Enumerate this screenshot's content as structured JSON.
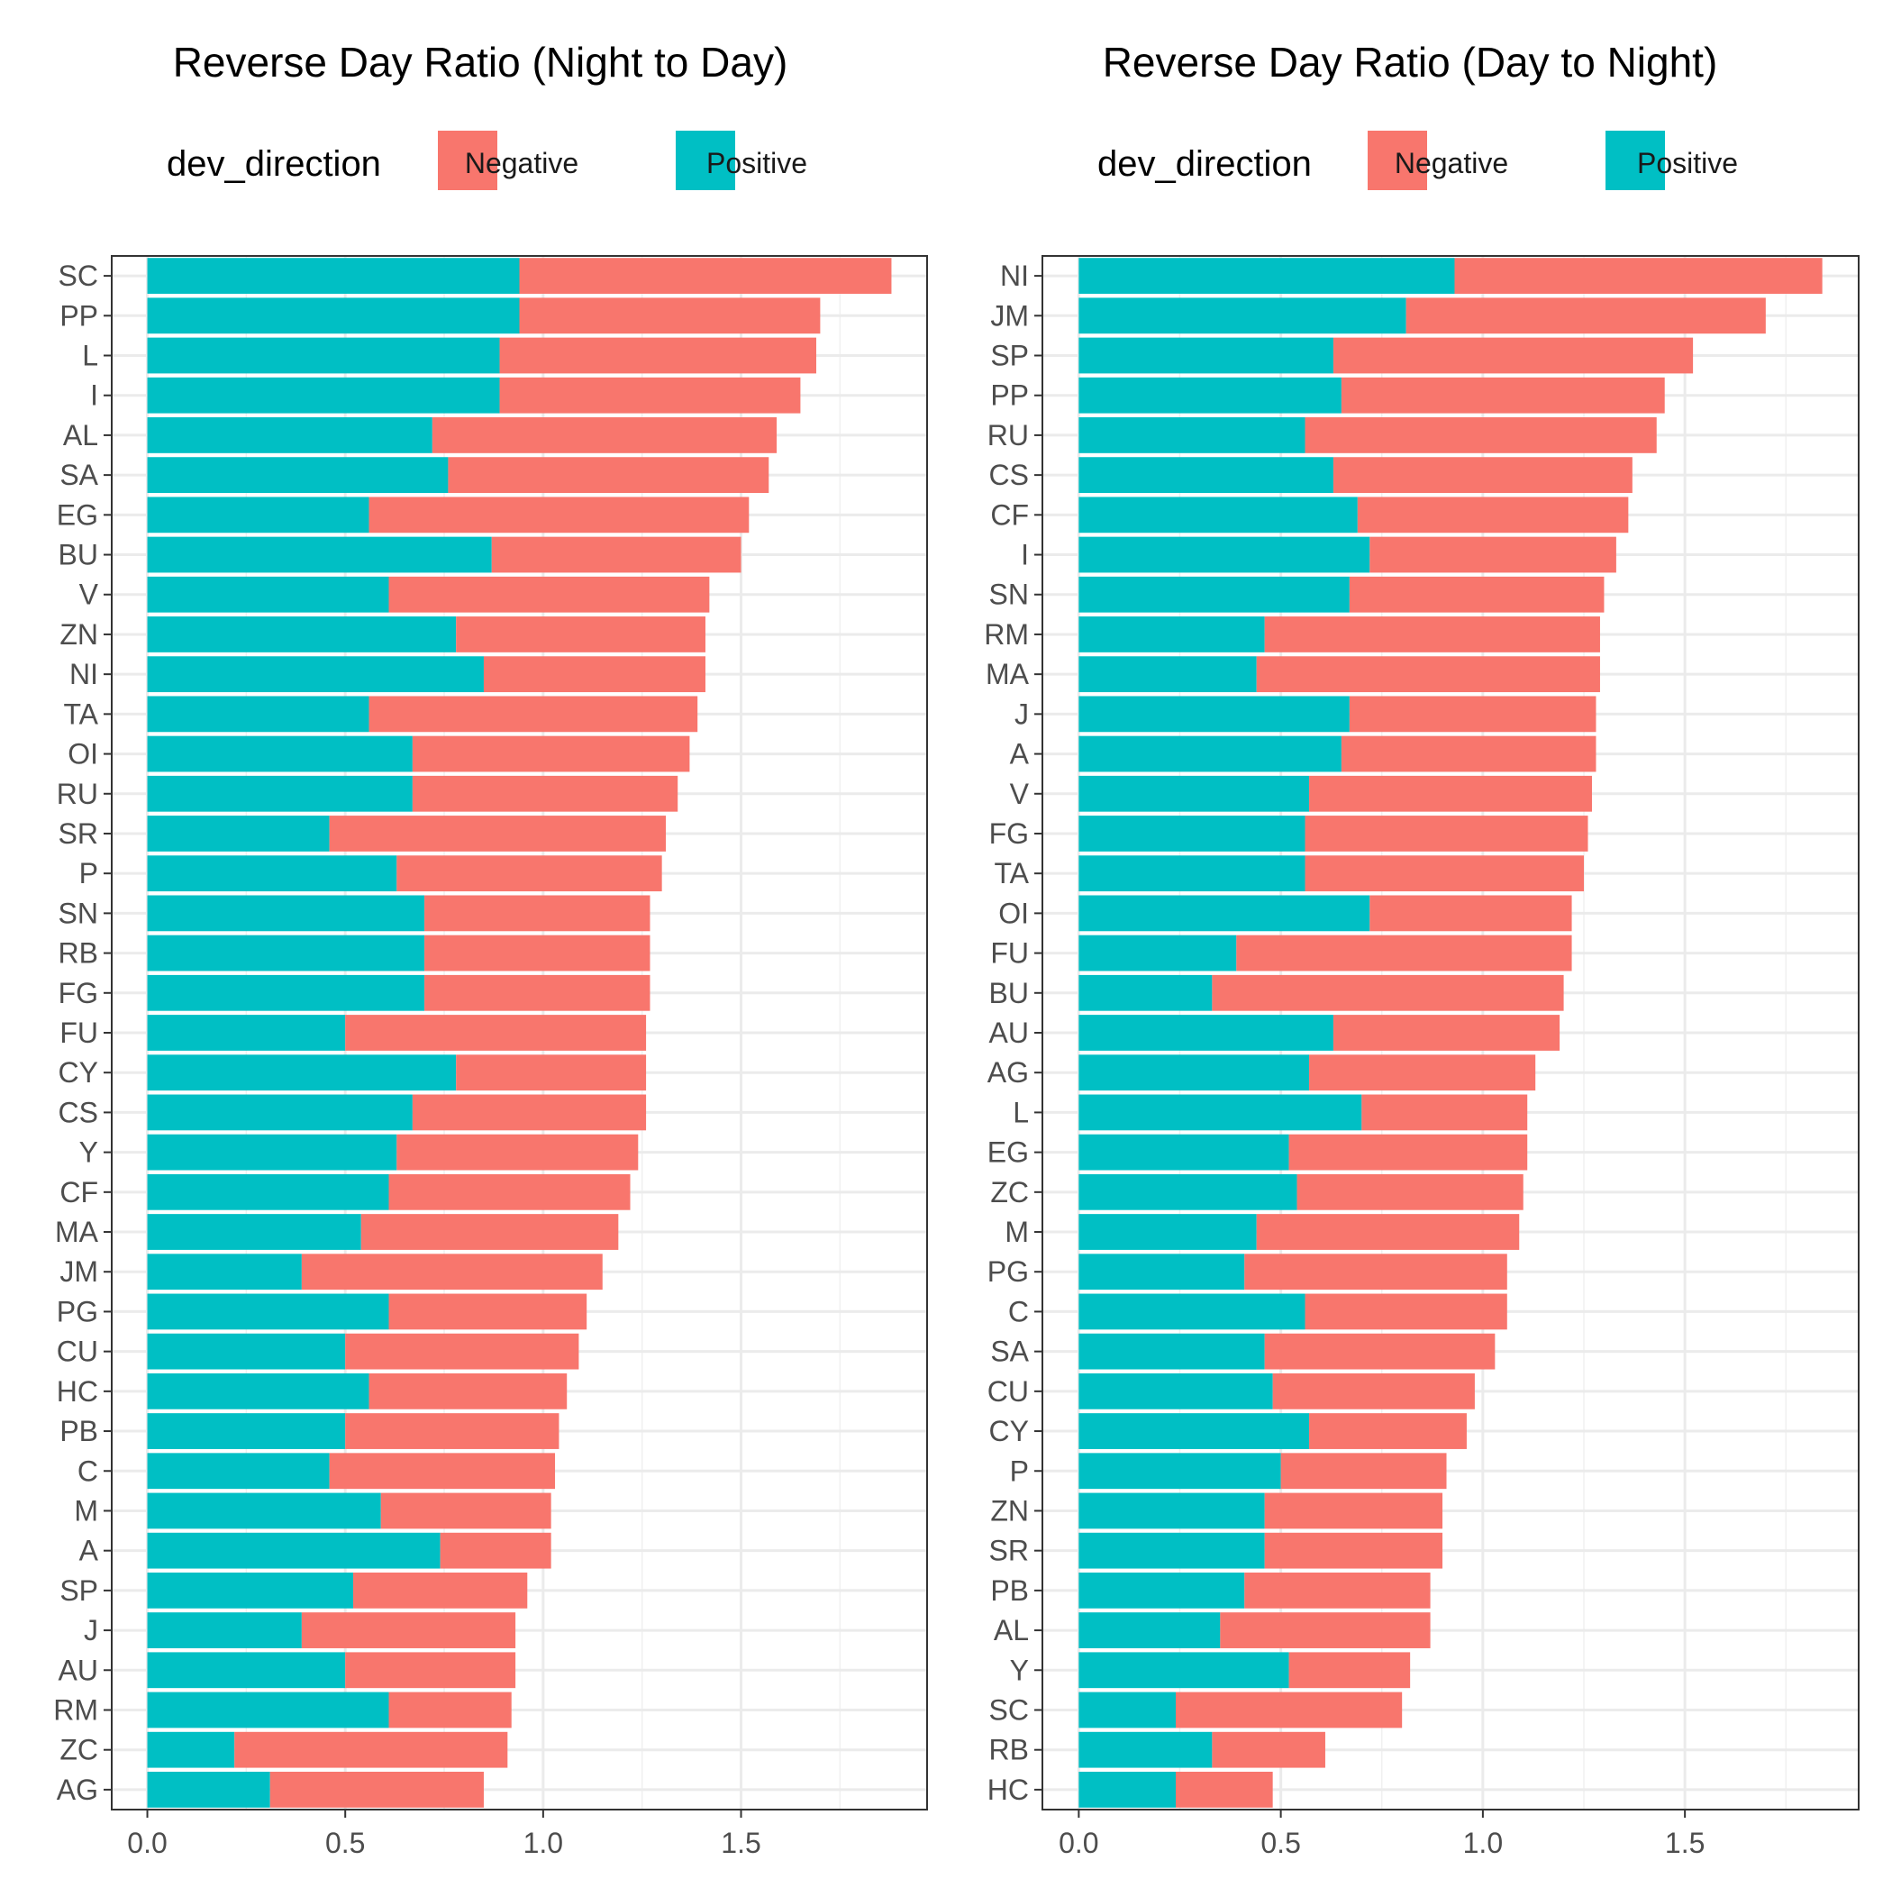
{
  "chart_data": [
    {
      "type": "bar",
      "orientation": "horizontal",
      "stacked": true,
      "title": "Reverse Day Ratio (Night to Day)",
      "legend": {
        "title": "dev_direction",
        "position": "top",
        "entries": [
          {
            "name": "Negative",
            "color": "#F8766D"
          },
          {
            "name": "Positive",
            "color": "#00BFC4"
          }
        ]
      },
      "xlabel": "",
      "ylabel": "",
      "xlim": [
        -0.09,
        1.97
      ],
      "xticks": [
        0.0,
        0.5,
        1.0,
        1.5
      ],
      "xtick_labels": [
        "0.0",
        "0.5",
        "1.0",
        "1.5"
      ],
      "grid": true,
      "categories": [
        "SC",
        "PP",
        "L",
        "I",
        "AL",
        "SA",
        "EG",
        "BU",
        "V",
        "ZN",
        "NI",
        "TA",
        "OI",
        "RU",
        "SR",
        "P",
        "SN",
        "RB",
        "FG",
        "FU",
        "CY",
        "CS",
        "Y",
        "CF",
        "MA",
        "JM",
        "PG",
        "CU",
        "HC",
        "PB",
        "C",
        "M",
        "A",
        "SP",
        "J",
        "AU",
        "RM",
        "ZC",
        "AG"
      ],
      "series": [
        {
          "name": "Positive",
          "values": [
            0.94,
            0.94,
            0.89,
            0.89,
            0.72,
            0.76,
            0.56,
            0.87,
            0.61,
            0.78,
            0.85,
            0.56,
            0.67,
            0.67,
            0.46,
            0.63,
            0.7,
            0.7,
            0.7,
            0.5,
            0.78,
            0.67,
            0.63,
            0.61,
            0.54,
            0.39,
            0.61,
            0.5,
            0.56,
            0.5,
            0.46,
            0.59,
            0.74,
            0.52,
            0.39,
            0.5,
            0.61,
            0.22,
            0.31
          ]
        },
        {
          "name": "Negative",
          "values": [
            0.94,
            0.76,
            0.8,
            0.76,
            0.87,
            0.81,
            0.96,
            0.63,
            0.81,
            0.63,
            0.56,
            0.83,
            0.7,
            0.67,
            0.85,
            0.67,
            0.57,
            0.57,
            0.57,
            0.76,
            0.48,
            0.59,
            0.61,
            0.61,
            0.65,
            0.76,
            0.5,
            0.59,
            0.5,
            0.54,
            0.57,
            0.43,
            0.28,
            0.44,
            0.54,
            0.43,
            0.31,
            0.69,
            0.54
          ]
        }
      ]
    },
    {
      "type": "bar",
      "orientation": "horizontal",
      "stacked": true,
      "title": "Reverse Day Ratio (Day to Night)",
      "legend": {
        "title": "dev_direction",
        "position": "top",
        "entries": [
          {
            "name": "Negative",
            "color": "#F8766D"
          },
          {
            "name": "Positive",
            "color": "#00BFC4"
          }
        ]
      },
      "xlabel": "",
      "ylabel": "",
      "xlim": [
        -0.09,
        1.93
      ],
      "xticks": [
        0.0,
        0.5,
        1.0,
        1.5
      ],
      "xtick_labels": [
        "0.0",
        "0.5",
        "1.0",
        "1.5"
      ],
      "grid": true,
      "categories": [
        "NI",
        "JM",
        "SP",
        "PP",
        "RU",
        "CS",
        "CF",
        "I",
        "SN",
        "RM",
        "MA",
        "J",
        "A",
        "V",
        "FG",
        "TA",
        "OI",
        "FU",
        "BU",
        "AU",
        "AG",
        "L",
        "EG",
        "ZC",
        "M",
        "PG",
        "C",
        "SA",
        "CU",
        "CY",
        "P",
        "ZN",
        "SR",
        "PB",
        "AL",
        "Y",
        "SC",
        "RB",
        "HC"
      ],
      "series": [
        {
          "name": "Positive",
          "values": [
            0.93,
            0.81,
            0.63,
            0.65,
            0.56,
            0.63,
            0.69,
            0.72,
            0.67,
            0.46,
            0.44,
            0.67,
            0.65,
            0.57,
            0.56,
            0.56,
            0.72,
            0.39,
            0.33,
            0.63,
            0.57,
            0.7,
            0.52,
            0.54,
            0.44,
            0.41,
            0.56,
            0.46,
            0.48,
            0.57,
            0.5,
            0.46,
            0.46,
            0.41,
            0.35,
            0.52,
            0.24,
            0.33,
            0.24
          ]
        },
        {
          "name": "Negative",
          "values": [
            0.91,
            0.89,
            0.89,
            0.8,
            0.87,
            0.74,
            0.67,
            0.61,
            0.63,
            0.83,
            0.85,
            0.61,
            0.63,
            0.7,
            0.7,
            0.69,
            0.5,
            0.83,
            0.87,
            0.56,
            0.56,
            0.41,
            0.59,
            0.56,
            0.65,
            0.65,
            0.5,
            0.57,
            0.5,
            0.39,
            0.41,
            0.44,
            0.44,
            0.46,
            0.52,
            0.3,
            0.56,
            0.28,
            0.24
          ]
        }
      ]
    }
  ]
}
